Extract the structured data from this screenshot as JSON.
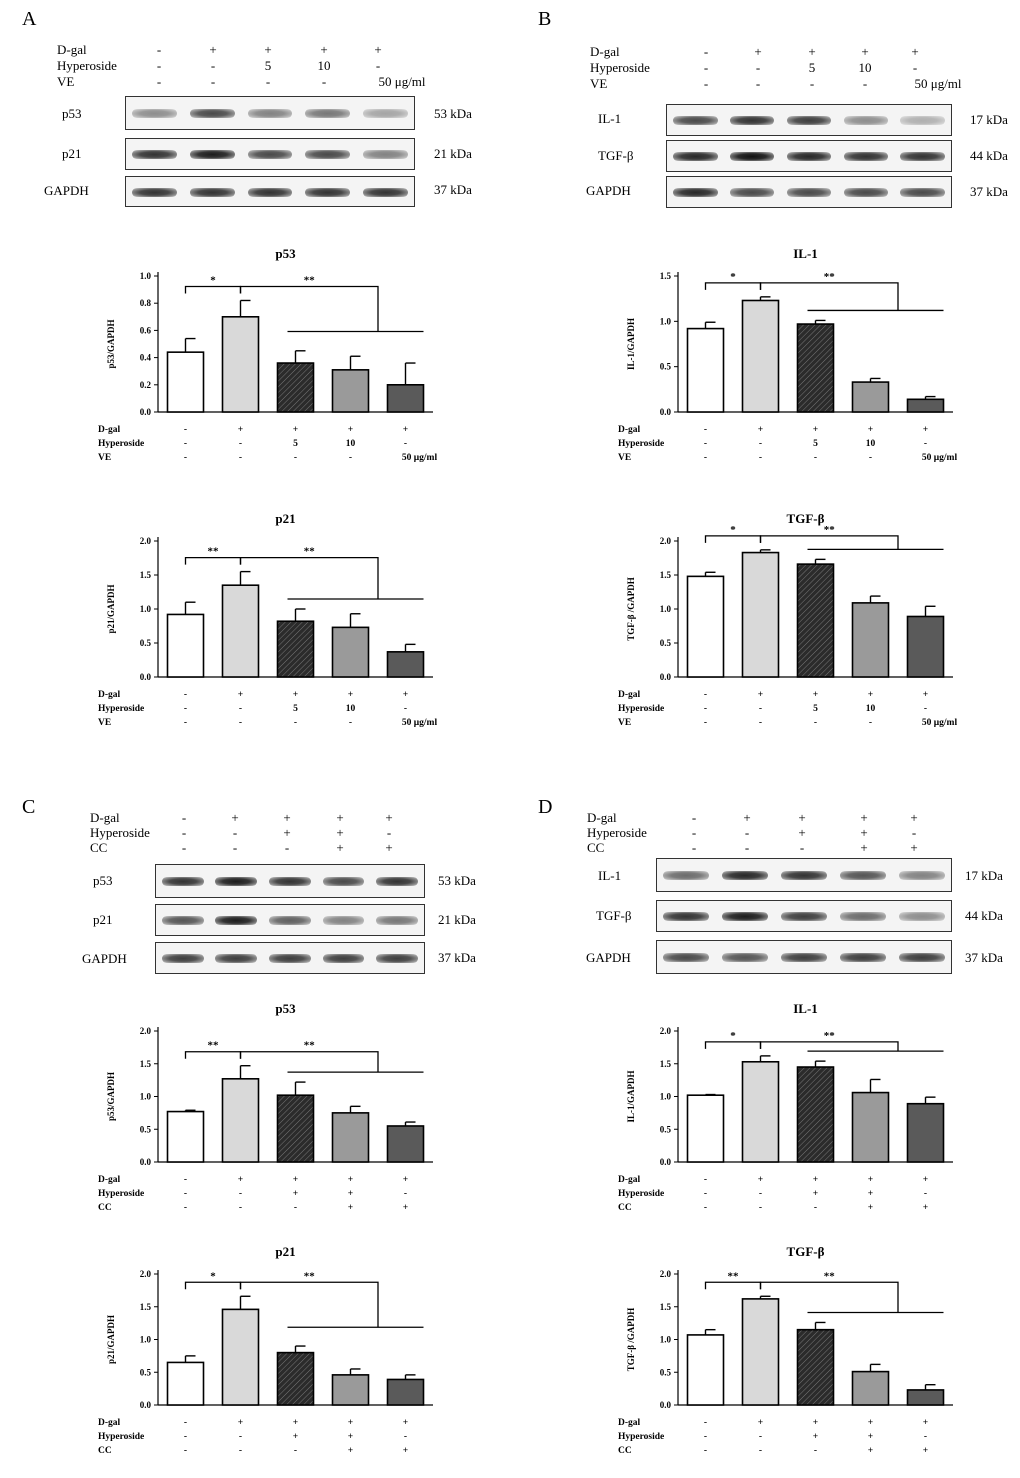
{
  "panels": {
    "A": {
      "letter": "A",
      "treatment": {
        "rows": [
          {
            "label": "D-gal",
            "values": [
              "-",
              "+",
              "+",
              "+",
              "+"
            ]
          },
          {
            "label": "Hyperoside",
            "values": [
              "-",
              "-",
              "5",
              "10",
              "-"
            ]
          },
          {
            "label": "VE",
            "values": [
              "-",
              "-",
              "-",
              "-",
              "50 μg/ml"
            ]
          }
        ]
      },
      "blots": [
        {
          "label": "p53",
          "kda": "53 kDa",
          "intensity": [
            0.45,
            0.75,
            0.5,
            0.55,
            0.35
          ]
        },
        {
          "label": "p21",
          "kda": "21 kDa",
          "intensity": [
            0.85,
            0.95,
            0.75,
            0.75,
            0.5
          ]
        },
        {
          "label": "GAPDH",
          "kda": "37 kDa",
          "intensity": [
            0.85,
            0.85,
            0.85,
            0.85,
            0.85
          ]
        }
      ]
    },
    "B": {
      "letter": "B",
      "treatment": {
        "rows": [
          {
            "label": "D-gal",
            "values": [
              "-",
              "+",
              "+",
              "+",
              "+"
            ]
          },
          {
            "label": "Hyperoside",
            "values": [
              "-",
              "-",
              "5",
              "10",
              "-"
            ]
          },
          {
            "label": "VE",
            "values": [
              "-",
              "-",
              "-",
              "-",
              "50 μg/ml"
            ]
          }
        ]
      },
      "blots": [
        {
          "label": "IL-1",
          "kda": "17 kDa",
          "intensity": [
            0.75,
            0.85,
            0.8,
            0.45,
            0.3
          ]
        },
        {
          "label": "TGF-β",
          "kda": "44 kDa",
          "intensity": [
            0.9,
            1.0,
            0.9,
            0.85,
            0.85
          ]
        },
        {
          "label": "GAPDH",
          "kda": "37 kDa",
          "intensity": [
            0.9,
            0.75,
            0.75,
            0.75,
            0.75
          ]
        }
      ]
    },
    "C": {
      "letter": "C",
      "treatment": {
        "rows": [
          {
            "label": "D-gal",
            "values": [
              "-",
              "+",
              "+",
              "+",
              "+"
            ]
          },
          {
            "label": "Hyperoside",
            "values": [
              "-",
              "-",
              "+",
              "+",
              "-"
            ]
          },
          {
            "label": "CC",
            "values": [
              "-",
              "-",
              "-",
              "+",
              "+"
            ]
          }
        ]
      },
      "blots": [
        {
          "label": "p53",
          "kda": "53 kDa",
          "intensity": [
            0.85,
            0.95,
            0.85,
            0.75,
            0.85
          ]
        },
        {
          "label": "p21",
          "kda": "21 kDa",
          "intensity": [
            0.7,
            0.95,
            0.65,
            0.5,
            0.55
          ]
        },
        {
          "label": "GAPDH",
          "kda": "37 kDa",
          "intensity": [
            0.8,
            0.8,
            0.8,
            0.8,
            0.8
          ]
        }
      ]
    },
    "D": {
      "letter": "D",
      "treatment": {
        "rows": [
          {
            "label": "D-gal",
            "values": [
              "-",
              "+",
              "+",
              "+",
              "+"
            ]
          },
          {
            "label": "Hyperoside",
            "values": [
              "-",
              "-",
              "+",
              "+",
              "-"
            ]
          },
          {
            "label": "CC",
            "values": [
              "-",
              "-",
              "-",
              "+",
              "+"
            ]
          }
        ]
      },
      "blots": [
        {
          "label": "IL-1",
          "kda": "17 kDa",
          "intensity": [
            0.6,
            0.9,
            0.85,
            0.7,
            0.5
          ]
        },
        {
          "label": "TGF-β",
          "kda": "44 kDa",
          "intensity": [
            0.85,
            0.95,
            0.8,
            0.6,
            0.45
          ]
        },
        {
          "label": "GAPDH",
          "kda": "37 kDa",
          "intensity": [
            0.75,
            0.7,
            0.8,
            0.8,
            0.8
          ]
        }
      ]
    }
  },
  "colors": {
    "bar_fills": [
      "#ffffff",
      "#d9d9d9",
      "#2b2b2b",
      "#9a9a9a",
      "#5a5a5a"
    ],
    "hatch_bar_index": 2
  },
  "chart_data": [
    {
      "id": "A1",
      "type": "bar",
      "title": "p53",
      "ylabel": "p53/GAPDH",
      "ylim": [
        0,
        1.0
      ],
      "yticks": [
        "0.0",
        "0.2",
        "0.4",
        "0.6",
        "0.8",
        "1.0"
      ],
      "values": [
        0.44,
        0.7,
        0.36,
        0.31,
        0.2
      ],
      "errors": [
        0.1,
        0.12,
        0.09,
        0.1,
        0.16
      ],
      "sig_first": "*",
      "sig_second": "**",
      "treatment": [
        {
          "label": "D-gal",
          "values": [
            "-",
            "+",
            "+",
            "+",
            "+"
          ]
        },
        {
          "label": "Hyperoside",
          "values": [
            "-",
            "-",
            "5",
            "10",
            "-"
          ]
        },
        {
          "label": "VE",
          "values": [
            "-",
            "-",
            "-",
            "-",
            "50 μg/ml"
          ]
        }
      ]
    },
    {
      "id": "A2",
      "type": "bar",
      "title": "p21",
      "ylabel": "p21/GAPDH",
      "ylim": [
        0,
        2.0
      ],
      "yticks": [
        "0.0",
        "0.5",
        "1.0",
        "1.5",
        "2.0"
      ],
      "values": [
        0.92,
        1.35,
        0.82,
        0.73,
        0.37
      ],
      "errors": [
        0.18,
        0.2,
        0.18,
        0.2,
        0.11
      ],
      "sig_first": "**",
      "sig_second": "**",
      "treatment": [
        {
          "label": "D-gal",
          "values": [
            "-",
            "+",
            "+",
            "+",
            "+"
          ]
        },
        {
          "label": "Hyperoside",
          "values": [
            "-",
            "-",
            "5",
            "10",
            "-"
          ]
        },
        {
          "label": "VE",
          "values": [
            "-",
            "-",
            "-",
            "-",
            "50 μg/ml"
          ]
        }
      ]
    },
    {
      "id": "B1",
      "type": "bar",
      "title": "IL-1",
      "ylabel": "IL-1/GAPDH",
      "ylim": [
        0,
        1.5
      ],
      "yticks": [
        "0.0",
        "0.5",
        "1.0",
        "1.5"
      ],
      "values": [
        0.92,
        1.23,
        0.97,
        0.33,
        0.14
      ],
      "errors": [
        0.07,
        0.04,
        0.04,
        0.04,
        0.03
      ],
      "sig_first": "*",
      "sig_second": "**",
      "treatment": [
        {
          "label": "D-gal",
          "values": [
            "-",
            "+",
            "+",
            "+",
            "+"
          ]
        },
        {
          "label": "Hyperoside",
          "values": [
            "-",
            "-",
            "5",
            "10",
            "-"
          ]
        },
        {
          "label": "VE",
          "values": [
            "-",
            "-",
            "-",
            "-",
            "50 μg/ml"
          ]
        }
      ]
    },
    {
      "id": "B2",
      "type": "bar",
      "title": "TGF-β",
      "ylabel": "TGF-β /GAPDH",
      "ylim": [
        0,
        2.0
      ],
      "yticks": [
        "0.0",
        "0.5",
        "1.0",
        "1.5",
        "2.0"
      ],
      "values": [
        1.48,
        1.83,
        1.66,
        1.09,
        0.89
      ],
      "errors": [
        0.06,
        0.04,
        0.07,
        0.1,
        0.15
      ],
      "sig_first": "*",
      "sig_second": "**",
      "treatment": [
        {
          "label": "D-gal",
          "values": [
            "-",
            "+",
            "+",
            "+",
            "+"
          ]
        },
        {
          "label": "Hyperoside",
          "values": [
            "-",
            "-",
            "5",
            "10",
            "-"
          ]
        },
        {
          "label": "VE",
          "values": [
            "-",
            "-",
            "-",
            "-",
            "50 μg/ml"
          ]
        }
      ]
    },
    {
      "id": "C1",
      "type": "bar",
      "title": "p53",
      "ylabel": "p53/GAPDH",
      "ylim": [
        0,
        2.0
      ],
      "yticks": [
        "0.0",
        "0.5",
        "1.0",
        "1.5",
        "2.0"
      ],
      "values": [
        0.77,
        1.27,
        1.02,
        0.75,
        0.55
      ],
      "errors": [
        0.02,
        0.2,
        0.2,
        0.1,
        0.06
      ],
      "sig_first": "**",
      "sig_second": "**",
      "treatment": [
        {
          "label": "D-gal",
          "values": [
            "-",
            "+",
            "+",
            "+",
            "+"
          ]
        },
        {
          "label": "Hyperoside",
          "values": [
            "-",
            "-",
            "+",
            "+",
            "-"
          ]
        },
        {
          "label": "CC",
          "values": [
            "-",
            "-",
            "-",
            "+",
            "+"
          ]
        }
      ]
    },
    {
      "id": "C2",
      "type": "bar",
      "title": "p21",
      "ylabel": "p21/GAPDH",
      "ylim": [
        0,
        2.0
      ],
      "yticks": [
        "0.0",
        "0.5",
        "1.0",
        "1.5",
        "2.0"
      ],
      "values": [
        0.65,
        1.46,
        0.8,
        0.46,
        0.39
      ],
      "errors": [
        0.1,
        0.2,
        0.1,
        0.09,
        0.07
      ],
      "sig_first": "*",
      "sig_second": "**",
      "treatment": [
        {
          "label": "D-gal",
          "values": [
            "-",
            "+",
            "+",
            "+",
            "+"
          ]
        },
        {
          "label": "Hyperoside",
          "values": [
            "-",
            "-",
            "+",
            "+",
            "-"
          ]
        },
        {
          "label": "CC",
          "values": [
            "-",
            "-",
            "-",
            "+",
            "+"
          ]
        }
      ]
    },
    {
      "id": "D1",
      "type": "bar",
      "title": "IL-1",
      "ylabel": "IL-1/GAPDH",
      "ylim": [
        0,
        2.0
      ],
      "yticks": [
        "0.0",
        "0.5",
        "1.0",
        "1.5",
        "2.0"
      ],
      "values": [
        1.02,
        1.53,
        1.45,
        1.06,
        0.89
      ],
      "errors": [
        0.01,
        0.09,
        0.09,
        0.2,
        0.1
      ],
      "sig_first": "*",
      "sig_second": "**",
      "treatment": [
        {
          "label": "D-gal",
          "values": [
            "-",
            "+",
            "+",
            "+",
            "+"
          ]
        },
        {
          "label": "Hyperoside",
          "values": [
            "-",
            "-",
            "+",
            "+",
            "-"
          ]
        },
        {
          "label": "CC",
          "values": [
            "-",
            "-",
            "-",
            "+",
            "+"
          ]
        }
      ]
    },
    {
      "id": "D2",
      "type": "bar",
      "title": "TGF-β",
      "ylabel": "TGF-β /GAPDH",
      "ylim": [
        0,
        2.0
      ],
      "yticks": [
        "0.0",
        "0.5",
        "1.0",
        "1.5",
        "2.0"
      ],
      "values": [
        1.07,
        1.62,
        1.15,
        0.51,
        0.23
      ],
      "errors": [
        0.08,
        0.04,
        0.11,
        0.11,
        0.08
      ],
      "sig_first": "**",
      "sig_second": "**",
      "treatment": [
        {
          "label": "D-gal",
          "values": [
            "-",
            "+",
            "+",
            "+",
            "+"
          ]
        },
        {
          "label": "Hyperoside",
          "values": [
            "-",
            "-",
            "+",
            "+",
            "-"
          ]
        },
        {
          "label": "CC",
          "values": [
            "-",
            "-",
            "-",
            "+",
            "+"
          ]
        }
      ]
    }
  ]
}
